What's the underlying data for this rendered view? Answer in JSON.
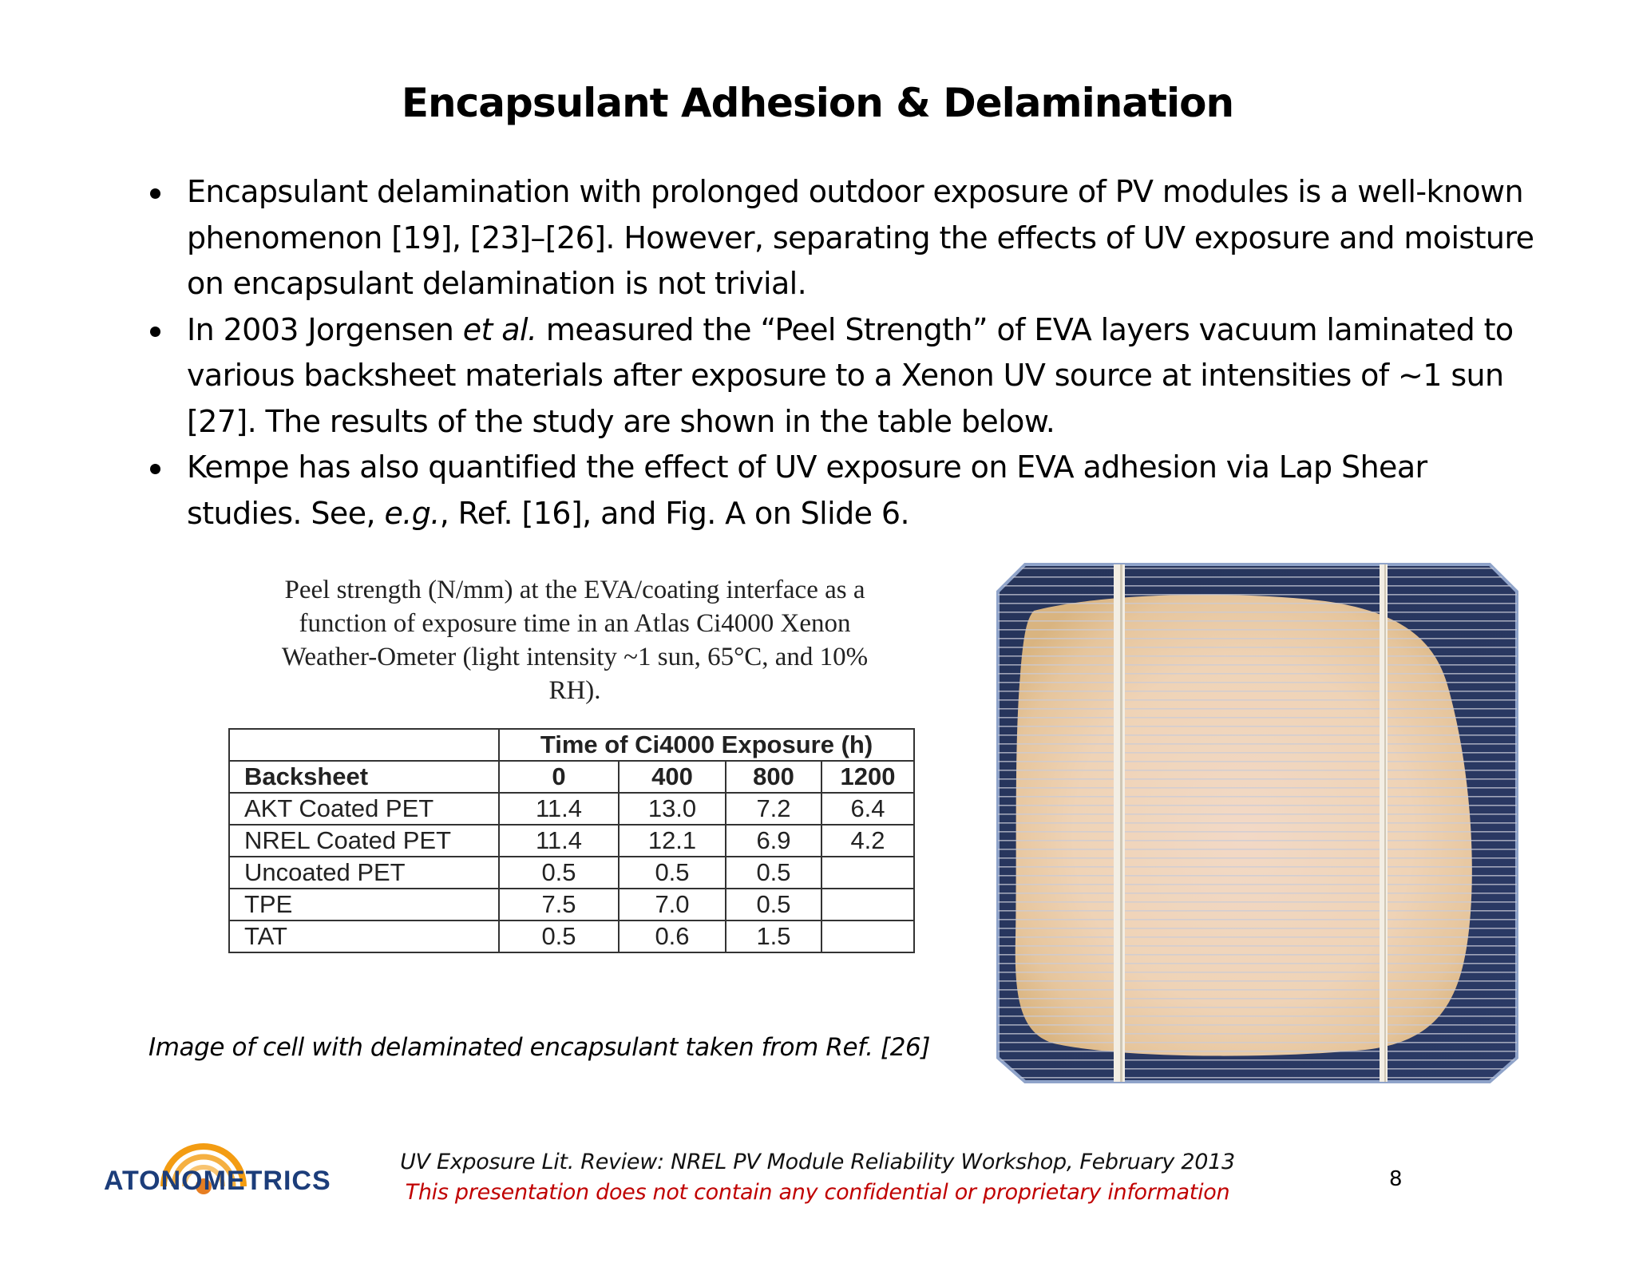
{
  "title": "Encapsulant Adhesion & Delamination",
  "bullets": [
    {
      "pre": "Encapsulant delamination with prolonged outdoor exposure of PV modules is a well-known phenomenon [19], [23]–[26].  However, separating the effects of UV exposure and moisture on encapsulant delamination is not trivial."
    },
    {
      "pre": "In 2003 Jorgensen ",
      "em": "et al.",
      "post": " measured the “Peel Strength” of EVA layers vacuum laminated to various backsheet materials after exposure to a Xenon UV source at intensities of ~1 sun [27].  The results of the study are shown in the table below."
    },
    {
      "pre": "Kempe has also quantified the effect of UV exposure on EVA adhesion via Lap Shear studies.  See, ",
      "em": "e.g.",
      "post": ", Ref. [16], and Fig. A on Slide 6."
    }
  ],
  "table_caption": "Peel strength (N/mm) at the EVA/coating interface as a function of exposure time in an Atlas Ci4000 Xenon Weather-Ometer (light intensity ~1 sun, 65°C, and 10% RH).",
  "table": {
    "group_header": "Time of Ci4000 Exposure (h)",
    "row_header": "Backsheet",
    "columns": [
      "0",
      "400",
      "800",
      "1200"
    ],
    "rows": [
      {
        "name": "AKT Coated PET",
        "values": [
          "11.4",
          "13.0",
          "7.2",
          "6.4"
        ]
      },
      {
        "name": "NREL Coated PET",
        "values": [
          "11.4",
          "12.1",
          "6.9",
          "4.2"
        ]
      },
      {
        "name": "Uncoated PET",
        "values": [
          "0.5",
          "0.5",
          "0.5",
          ""
        ]
      },
      {
        "name": "TPE",
        "values": [
          "7.5",
          "7.0",
          "0.5",
          ""
        ]
      },
      {
        "name": "TAT",
        "values": [
          "0.5",
          "0.6",
          "1.5",
          ""
        ]
      }
    ]
  },
  "image_caption": "Image of cell with delaminated encapsulant taken from Ref. [26]",
  "logo_text": "ATONOMETRICS",
  "footer": {
    "line1": "UV Exposure Lit. Review: NREL PV Module Reliability Workshop, February 2013",
    "line2": "This presentation does not contain any confidential or proprietary information",
    "line2_color": "#c00000"
  },
  "page_number": "8"
}
